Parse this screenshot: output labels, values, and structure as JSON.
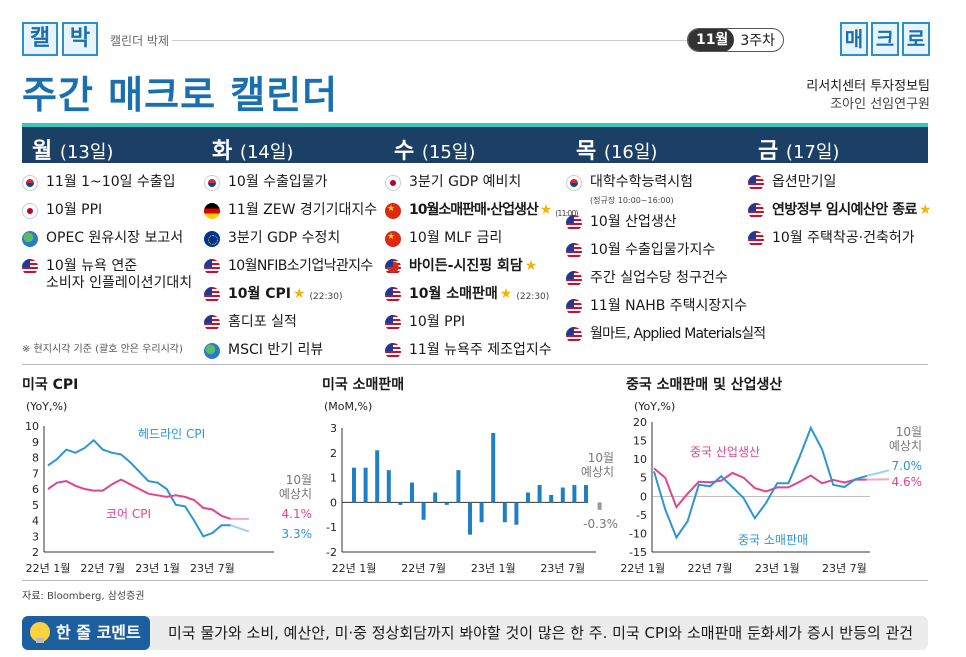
{
  "header": {
    "logo_chars": [
      "캘",
      "박"
    ],
    "logo_sub": "캘린더 박제",
    "month": "11월",
    "week": "3주차",
    "macro_chars": [
      "매",
      "크",
      "로"
    ],
    "title": "주간 매크로 캘린더",
    "author_line1": "리서치센터 투자정보팀",
    "author_line2": "조아인 선임연구원"
  },
  "days": [
    {
      "name": "월",
      "date": "(13일)"
    },
    {
      "name": "화",
      "date": "(14일)"
    },
    {
      "name": "수",
      "date": "(15일)"
    },
    {
      "name": "목",
      "date": "(16일)"
    },
    {
      "name": "금",
      "date": "(17일)"
    }
  ],
  "events": {
    "mon": [
      {
        "flag": "kr",
        "text": "11월 1~10일 수출입"
      },
      {
        "flag": "jp",
        "text": "10월 PPI"
      },
      {
        "flag": "globe",
        "text": "OPEC 원유시장 보고서"
      },
      {
        "flag": "us",
        "text": "10월 뉴욕 연준",
        "text2": "소비자 인플레이션기대치"
      }
    ],
    "tue": [
      {
        "flag": "kr",
        "text": "10월 수출입물가"
      },
      {
        "flag": "de",
        "text": "11월 ZEW 경기기대지수"
      },
      {
        "flag": "eu",
        "text": "3분기 GDP 수정치"
      },
      {
        "flag": "us",
        "text": "10월NFIB소기업낙관지수"
      },
      {
        "flag": "us",
        "text": "10월 CPI",
        "time": "(22:30)"
      },
      {
        "flag": "us",
        "text": "홈디포 실적"
      },
      {
        "flag": "globe",
        "text": "MSCI 반기 리뷰"
      }
    ],
    "wed": [
      {
        "flag": "jp",
        "text": "3분기 GDP 예비치"
      },
      {
        "flag": "cn",
        "text": "10월소매판매·산업생산",
        "time": "(11:00)"
      },
      {
        "flag": "cn",
        "text": "10월 MLF 금리"
      },
      {
        "flag": "us",
        "text": "바이든-시진핑 회담"
      },
      {
        "flag": "us",
        "text": "10월 소매판매",
        "time": "(22:30)"
      },
      {
        "flag": "us",
        "text": "10월 PPI"
      },
      {
        "flag": "us",
        "text": "11월 뉴욕주 제조업지수"
      }
    ],
    "thu": [
      {
        "flag": "kr",
        "text": "대학수학능력시험",
        "sub": "(정규장 10:00~16:00)"
      },
      {
        "flag": "us",
        "text": "10월 산업생산"
      },
      {
        "flag": "us",
        "text": "10월 수출입물가지수"
      },
      {
        "flag": "us",
        "text": "주간 실업수당 청구건수"
      },
      {
        "flag": "us",
        "text": "11월 NAHB 주택시장지수"
      },
      {
        "flag": "us",
        "text": "월마트, Applied Materials실적"
      }
    ],
    "fri": [
      {
        "flag": "us",
        "text": "옵션만기일"
      },
      {
        "flag": "us",
        "text": "연방정부 임시예산안 종료"
      },
      {
        "flag": "us",
        "text": "10월 주택착공·건축허가"
      }
    ]
  },
  "note": "※ 현지시각 기준 (괄호 안은 우리시각)",
  "source": "자료: Bloomberg, 삼성증권",
  "comment": {
    "label": "한 줄 코멘트",
    "text": "미국 물가와 소비, 예산안, 미·중 정상회담까지 봐야할 것이 많은 한 주. 미국 CPI와 소매판매 둔화세가 증시 반등의 관건"
  },
  "colors": {
    "navy": "#1c3f66",
    "teal": "#38c6c0",
    "blue": "#1a6fae",
    "headline": "#2e94d6",
    "core": "#e0458f",
    "bar": "#1f7fc4"
  },
  "chart_data": [
    {
      "type": "line",
      "title": "미국 CPI",
      "ylabel": "(YoY,%)",
      "ylim": [
        2,
        10
      ],
      "yticks": [
        2,
        3,
        4,
        5,
        6,
        7,
        8,
        9,
        10
      ],
      "xticks": [
        "22년 1월",
        "22년 7월",
        "23년 1월",
        "23년 7월"
      ],
      "x": [
        "22-01",
        "22-02",
        "22-03",
        "22-04",
        "22-05",
        "22-06",
        "22-07",
        "22-08",
        "22-09",
        "22-10",
        "22-11",
        "22-12",
        "23-01",
        "23-02",
        "23-03",
        "23-04",
        "23-05",
        "23-06",
        "23-07",
        "23-08",
        "23-09"
      ],
      "series": [
        {
          "name": "헤드라인 CPI",
          "values": [
            7.5,
            7.9,
            8.5,
            8.3,
            8.6,
            9.1,
            8.5,
            8.3,
            8.2,
            7.7,
            7.1,
            6.5,
            6.4,
            6.0,
            5.0,
            4.9,
            4.0,
            3.0,
            3.2,
            3.7,
            3.7
          ]
        },
        {
          "name": "코어 CPI",
          "values": [
            6.0,
            6.4,
            6.5,
            6.2,
            6.0,
            5.9,
            5.9,
            6.3,
            6.6,
            6.3,
            6.0,
            5.7,
            5.6,
            5.5,
            5.6,
            5.5,
            5.3,
            4.8,
            4.7,
            4.3,
            4.1
          ]
        }
      ],
      "forecast_label": [
        "10월",
        "예상치"
      ],
      "forecast": [
        {
          "series": "코어 CPI",
          "label": "4.1%",
          "value": 4.1
        },
        {
          "series": "헤드라인 CPI",
          "label": "3.3%",
          "value": 3.3
        }
      ]
    },
    {
      "type": "bar",
      "title": "미국 소매판매",
      "ylabel": "(MoM,%)",
      "ylim": [
        -2,
        3
      ],
      "yticks": [
        -2,
        -1,
        0,
        1,
        2,
        3
      ],
      "xticks": [
        "22년 1월",
        "22년 7월",
        "23년 1월",
        "23년 7월"
      ],
      "x": [
        "22-01",
        "22-02",
        "22-03",
        "22-04",
        "22-05",
        "22-06",
        "22-07",
        "22-08",
        "22-09",
        "22-10",
        "22-11",
        "22-12",
        "23-01",
        "23-02",
        "23-03",
        "23-04",
        "23-05",
        "23-06",
        "23-07",
        "23-08",
        "23-09"
      ],
      "values": [
        1.4,
        1.4,
        2.1,
        1.3,
        -0.1,
        0.8,
        -0.7,
        0.4,
        -0.1,
        1.3,
        -1.3,
        -0.8,
        2.8,
        -0.8,
        -0.9,
        0.4,
        0.7,
        0.3,
        0.6,
        0.7,
        0.7
      ],
      "forecast_label": [
        "10월",
        "예상치"
      ],
      "forecast": {
        "label": "-0.3%",
        "value": -0.3
      }
    },
    {
      "type": "line",
      "title": "중국 소매판매 및 산업생산",
      "ylabel": "(YoY,%)",
      "ylim": [
        -15,
        20
      ],
      "yticks": [
        -15,
        -10,
        -5,
        0,
        5,
        10,
        15,
        20
      ],
      "xticks": [
        "22년 1월",
        "22년 7월",
        "23년 1월",
        "23년 7월"
      ],
      "x": [
        "22-02",
        "22-03",
        "22-04",
        "22-05",
        "22-06",
        "22-07",
        "22-08",
        "22-09",
        "22-10",
        "22-11",
        "22-12",
        "23-01",
        "23-02",
        "23-03",
        "23-04",
        "23-05",
        "23-06",
        "23-07",
        "23-08",
        "23-09"
      ],
      "series": [
        {
          "name": "중국 산업생산",
          "values": [
            7.5,
            5.0,
            -2.9,
            0.7,
            3.9,
            3.8,
            4.2,
            6.3,
            5.0,
            2.2,
            1.3,
            2.4,
            2.4,
            3.9,
            5.6,
            3.5,
            4.4,
            3.7,
            4.5,
            4.5
          ]
        },
        {
          "name": "중국 소매판매",
          "values": [
            6.7,
            -3.5,
            -11.1,
            -6.7,
            3.1,
            2.7,
            5.4,
            2.5,
            -0.5,
            -5.9,
            -1.8,
            3.5,
            3.5,
            10.6,
            18.4,
            12.7,
            3.1,
            2.5,
            4.6,
            5.5
          ]
        }
      ],
      "forecast_label": [
        "10월",
        "예상치"
      ],
      "forecast": [
        {
          "series": "중국 소매판매",
          "label": "7.0%",
          "value": 7.0
        },
        {
          "series": "중국 산업생산",
          "label": "4.6%",
          "value": 4.6
        }
      ]
    }
  ]
}
